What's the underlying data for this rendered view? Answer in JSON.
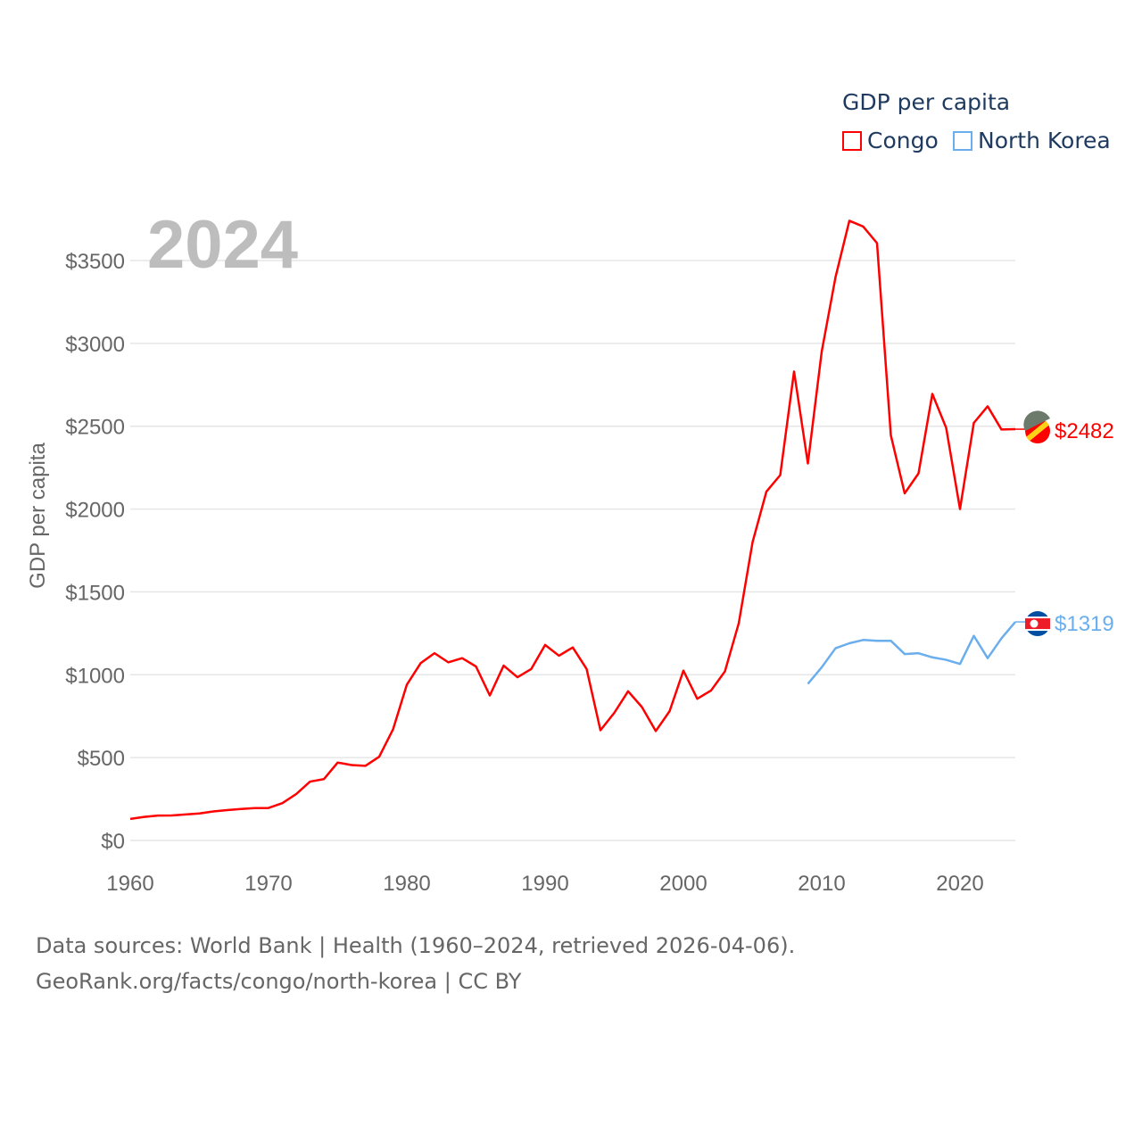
{
  "chart_data": {
    "type": "line",
    "title": "2024",
    "ylabel": "GDP per capita",
    "xlabel": "",
    "xlim": [
      1960,
      2024
    ],
    "ylim": [
      0,
      3500
    ],
    "x_ticks": [
      "1960",
      "1970",
      "1980",
      "1990",
      "2000",
      "2010",
      "2020"
    ],
    "y_ticks": [
      "$0",
      "$500",
      "$1000",
      "$1500",
      "$2000",
      "$2500",
      "$3000",
      "$3500"
    ],
    "legend_title": "GDP per capita",
    "legend_position": "top-right",
    "grid": true,
    "series": [
      {
        "name": "Congo",
        "color": "#ff0000",
        "end_label": "$2482",
        "start_year": 1960,
        "values": [
          130,
          142,
          150,
          151,
          157,
          163,
          175,
          183,
          190,
          195,
          196,
          225,
          280,
          355,
          370,
          470,
          455,
          450,
          505,
          670,
          940,
          1070,
          1130,
          1075,
          1100,
          1050,
          875,
          1055,
          985,
          1035,
          1180,
          1115,
          1165,
          1035,
          665,
          770,
          900,
          805,
          660,
          780,
          1025,
          855,
          905,
          1020,
          1310,
          1800,
          2105,
          2205,
          2830,
          2275,
          2950,
          3400,
          3740,
          3705,
          3605,
          2445,
          2095,
          2215,
          2695,
          2490,
          2000,
          2520,
          2620,
          2480,
          2482
        ]
      },
      {
        "name": "North Korea",
        "color": "#6aaeed",
        "end_label": "$1319",
        "start_year": 2009,
        "values": [
          945,
          1045,
          1160,
          1190,
          1210,
          1205,
          1205,
          1125,
          1130,
          1105,
          1090,
          1065,
          1235,
          1100,
          1220,
          1319
        ]
      }
    ]
  },
  "footer": {
    "line1": "Data sources: World Bank | Health (1960–2024, retrieved 2026-04-06).",
    "line2": "GeoRank.org/facts/congo/north-korea | CC BY"
  }
}
